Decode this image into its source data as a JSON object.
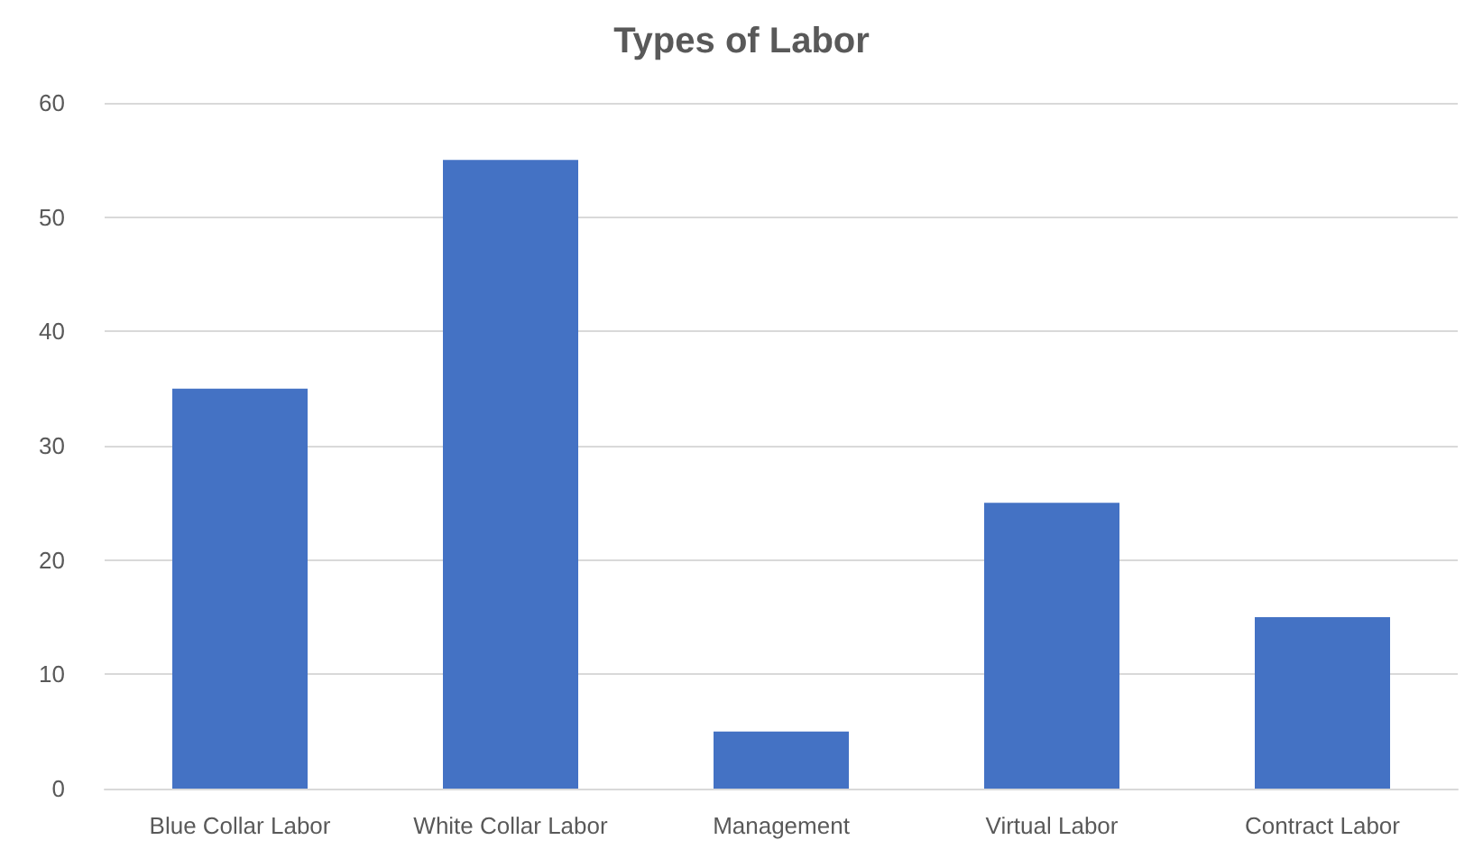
{
  "chart_data": {
    "type": "bar",
    "title": "Types of Labor",
    "categories": [
      "Blue Collar Labor",
      "White Collar Labor",
      "Management",
      "Virtual Labor",
      "Contract Labor"
    ],
    "values": [
      35,
      55,
      5,
      25,
      15
    ],
    "color": "#4472c4",
    "ylim": [
      0,
      60
    ],
    "yticks": [
      0,
      10,
      20,
      30,
      40,
      50,
      60
    ],
    "grid": "y"
  }
}
